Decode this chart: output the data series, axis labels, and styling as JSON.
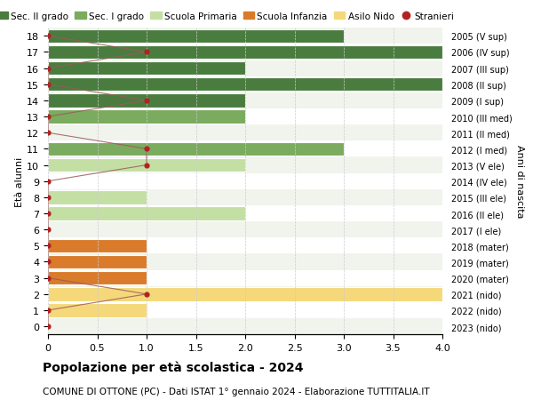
{
  "ages": [
    18,
    17,
    16,
    15,
    14,
    13,
    12,
    11,
    10,
    9,
    8,
    7,
    6,
    5,
    4,
    3,
    2,
    1,
    0
  ],
  "years": [
    "2005 (V sup)",
    "2006 (IV sup)",
    "2007 (III sup)",
    "2008 (II sup)",
    "2009 (I sup)",
    "2010 (III med)",
    "2011 (II med)",
    "2012 (I med)",
    "2013 (V ele)",
    "2014 (IV ele)",
    "2015 (III ele)",
    "2016 (II ele)",
    "2017 (I ele)",
    "2018 (mater)",
    "2019 (mater)",
    "2020 (mater)",
    "2021 (nido)",
    "2022 (nido)",
    "2023 (nido)"
  ],
  "bar_values": [
    3,
    4,
    2,
    4,
    2,
    2,
    0,
    3,
    2,
    0,
    1,
    2,
    0,
    1,
    1,
    1,
    4,
    1,
    0
  ],
  "stranieri_values": [
    0,
    1,
    0,
    0,
    1,
    0,
    0,
    1,
    1,
    0,
    0,
    0,
    0,
    0,
    0,
    0,
    1,
    0,
    0
  ],
  "bar_colors_by_age": {
    "18": "#4a7c3f",
    "17": "#4a7c3f",
    "16": "#4a7c3f",
    "15": "#4a7c3f",
    "14": "#4a7c3f",
    "13": "#7aab5e",
    "12": "#7aab5e",
    "11": "#7aab5e",
    "10": "#c4dfa4",
    "9": "#c4dfa4",
    "8": "#c4dfa4",
    "7": "#c4dfa4",
    "6": "#c4dfa4",
    "5": "#d97b2b",
    "4": "#d97b2b",
    "3": "#d97b2b",
    "2": "#f5d87a",
    "1": "#f5d87a",
    "0": "#f5d87a"
  },
  "row_bg_even": "#f0f4ed",
  "row_bg_odd": "#ffffff",
  "stranieri_color": "#b22222",
  "line_color": "#9b5a5a",
  "bg_color": "#ffffff",
  "grid_color": "#cccccc",
  "title": "Popolazione per età scolastica - 2024",
  "subtitle": "COMUNE DI OTTONE (PC) - Dati ISTAT 1° gennaio 2024 - Elaborazione TUTTITALIA.IT",
  "xlabel_left": "Età alunni",
  "xlabel_right": "Anni di nascita",
  "xlim": [
    0,
    4.0
  ],
  "bar_height": 0.85,
  "legend_labels": [
    "Sec. II grado",
    "Sec. I grado",
    "Scuola Primaria",
    "Scuola Infanzia",
    "Asilo Nido",
    "Stranieri"
  ],
  "legend_colors": [
    "#4a7c3f",
    "#7aab5e",
    "#c4dfa4",
    "#d97b2b",
    "#f5d87a",
    "#b22222"
  ]
}
